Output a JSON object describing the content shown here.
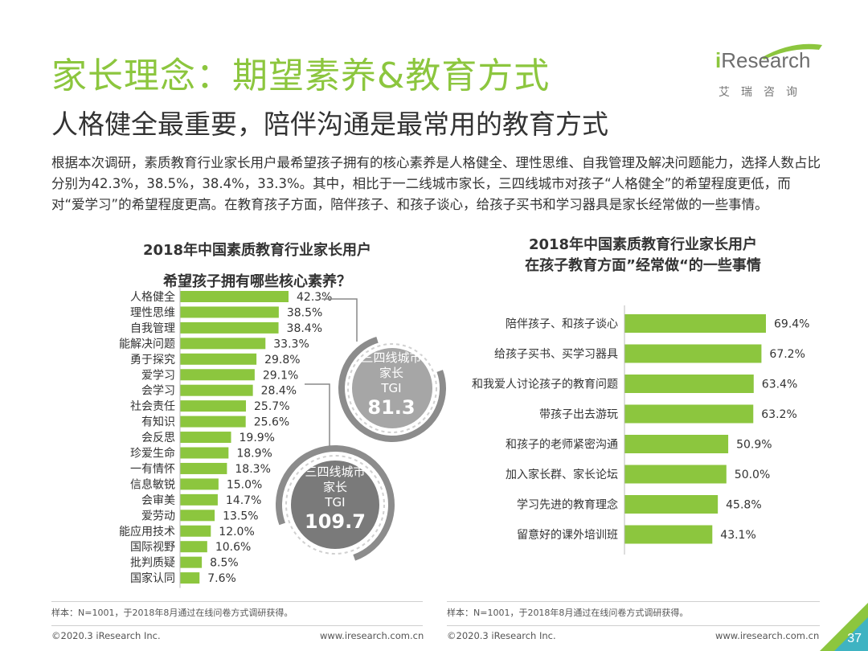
{
  "title": "家长理念：期望素养&教育方式",
  "subtitle": "人格健全最重要，陪伴沟通是最常用的教育方式",
  "paragraph": "根据本次调研，素质教育行业家长用户最希望孩子拥有的核心素养是人格健全、理性思维、自我管理及解决问题能力，选择人数占比分别为42.3%，38.5%，38.4%，33.3%。其中，相比于一二线城市家长，三四线城市对孩子“人格健全”的希望程度更低，而对“爱学习”的希望程度更高。在教育孩子方面，陪伴孩子、和孩子谈心，给孩子买书和学习器具是家长经常做的一些事情。",
  "logo": {
    "brand_i": "i",
    "brand_rest": "Research",
    "sub": "艾瑞咨询"
  },
  "colors": {
    "accent": "#8cc63e",
    "ring": "#8c8c8c",
    "text": "#333333"
  },
  "chart_data": [
    {
      "type": "bar",
      "orientation": "horizontal",
      "title_line1": "2018年中国素质教育行业家长用户",
      "title_line2": "希望孩子拥有哪些核心素养？",
      "categories": [
        "人格健全",
        "理性思维",
        "自我管理",
        "能解决问题",
        "勇于探究",
        "爱学习",
        "会学习",
        "社会责任",
        "有知识",
        "会反思",
        "珍爱生命",
        "一有情怀",
        "信息敏锐",
        "会审美",
        "爱劳动",
        "能应用技术",
        "国际视野",
        "批判质疑",
        "国家认同"
      ],
      "values": [
        42.3,
        38.5,
        38.4,
        33.3,
        29.8,
        29.1,
        28.4,
        25.7,
        25.6,
        19.9,
        18.9,
        18.3,
        15.0,
        14.7,
        13.5,
        12.0,
        10.6,
        8.5,
        7.6
      ],
      "value_labels": [
        "42.3%",
        "38.5%",
        "38.4%",
        "33.3%",
        "29.8%",
        "29.1%",
        "28.4%",
        "25.7%",
        "25.6%",
        "19.9%",
        "18.9%",
        "18.3%",
        "15.0%",
        "14.7%",
        "13.5%",
        "12.0%",
        "10.6%",
        "8.5%",
        "7.6%"
      ],
      "unit": "%",
      "annotations": [
        {
          "target": "人格健全",
          "label_line1": "三四线城市",
          "label_line2": "家长",
          "label_line3": "TGI",
          "value": "81.3",
          "style": "light-circle"
        },
        {
          "target": "爱学习",
          "label_line1": "三四线城市",
          "label_line2": "家长",
          "label_line3": "TGI",
          "value": "109.7",
          "style": "dark-circle"
        }
      ],
      "note": "样本：N=1001，于2018年8月通过在线问卷方式调研获得。"
    },
    {
      "type": "bar",
      "orientation": "horizontal",
      "title_line1": "2018年中国素质教育行业家长用户",
      "title_line2": "在孩子教育方面”经常做“的一些事情",
      "categories": [
        "陪伴孩子、和孩子谈心",
        "给孩子买书、买学习器具",
        "和我爱人讨论孩子的教育问题",
        "带孩子出去游玩",
        "和孩子的老师紧密沟通",
        "加入家长群、家长论坛",
        "学习先进的教育理念",
        "留意好的课外培训班"
      ],
      "values": [
        69.4,
        67.2,
        63.4,
        63.2,
        50.9,
        50.0,
        45.8,
        43.1
      ],
      "value_labels": [
        "69.4%",
        "67.2%",
        "63.4%",
        "63.2%",
        "50.9%",
        "50.0%",
        "45.8%",
        "43.1%"
      ],
      "unit": "%",
      "note": "样本：N=1001，于2018年8月通过在线问卷方式调研获得。"
    }
  ],
  "footer": {
    "copyright": "©2020.3 iResearch Inc.",
    "url": "www.iresearch.com.cn",
    "page": "37"
  }
}
